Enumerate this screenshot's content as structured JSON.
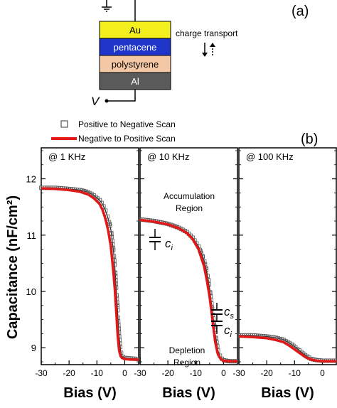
{
  "device": {
    "panel_label": "(a)",
    "layers": [
      {
        "label": "Au",
        "color": "#f2ef1c",
        "text_color": "#000000"
      },
      {
        "label": "pentacene",
        "color": "#1f35c9",
        "text_color": "#ffffff"
      },
      {
        "label": "polystyrene",
        "color": "#f4c8a4",
        "text_color": "#000000"
      },
      {
        "label": "Al",
        "color": "#5a5a5a",
        "text_color": "#ffffff"
      }
    ],
    "transport_label": "charge transport",
    "voltage_label": "V"
  },
  "legend": {
    "items": [
      {
        "label": "Positive to Negative Scan",
        "style": "open-square"
      },
      {
        "label": "Negative to Positive Scan",
        "style": "red-line"
      }
    ]
  },
  "annotations": {
    "panel_b": "(b)",
    "accumulation_line1": "Accumulation",
    "accumulation_line2": "Region",
    "depletion_line1": "Depletion",
    "depletion_line2": "Region",
    "ci_label": "c",
    "ci_sub": "i",
    "cs_label": "c",
    "cs_sub": "s"
  },
  "colors": {
    "line": "#e01818",
    "marker": "#555555",
    "axis": "#000000"
  },
  "chart_data": {
    "type": "line",
    "ylabel": "Capacitance (nF/cm²)",
    "ylim": [
      8.7,
      12.55
    ],
    "yticks": [
      9,
      10,
      11,
      12
    ],
    "xlim": [
      -30,
      5
    ],
    "xticks": [
      -30,
      -20,
      -10,
      0
    ],
    "panels": [
      {
        "title": "@ 1 KHz",
        "xlabel": "Bias (V)",
        "series": [
          {
            "name": "Positive to Negative Scan",
            "x": [
              -30,
              -25,
              -20,
              -16,
              -13,
              -11,
              -9,
              -8,
              -7,
              -6,
              -5,
              -4,
              -3.5,
              -3,
              -2.5,
              -2,
              -1.5,
              -1,
              0,
              2,
              5
            ],
            "y": [
              11.84,
              11.84,
              11.82,
              11.8,
              11.76,
              11.7,
              11.62,
              11.55,
              11.45,
              11.3,
              11.1,
              10.7,
              10.4,
              10.0,
              9.6,
              9.2,
              8.95,
              8.85,
              8.82,
              8.81,
              8.8
            ]
          },
          {
            "name": "Negative to Positive Scan",
            "x": [
              -30,
              -25,
              -20,
              -16,
              -13,
              -11,
              -9,
              -8,
              -7,
              -6,
              -5,
              -4,
              -3.5,
              -3,
              -2.5,
              -2,
              -1.5,
              -1,
              0,
              2,
              5
            ],
            "y": [
              11.83,
              11.82,
              11.8,
              11.77,
              11.72,
              11.65,
              11.55,
              11.45,
              11.3,
              11.1,
              10.8,
              10.3,
              10.0,
              9.6,
              9.2,
              8.95,
              8.85,
              8.82,
              8.8,
              8.79,
              8.79
            ]
          }
        ]
      },
      {
        "title": "@ 10 KHz",
        "xlabel": "Bias (V)",
        "series": [
          {
            "name": "Positive to Negative Scan",
            "x": [
              -30,
              -25,
              -20,
              -16,
              -13,
              -11,
              -9,
              -7,
              -6,
              -5,
              -4,
              -3,
              -2,
              -1,
              0,
              2,
              5
            ],
            "y": [
              11.28,
              11.25,
              11.2,
              11.13,
              11.05,
              10.95,
              10.8,
              10.55,
              10.35,
              10.05,
              9.65,
              9.25,
              8.95,
              8.82,
              8.78,
              8.76,
              8.76
            ]
          },
          {
            "name": "Negative to Positive Scan",
            "x": [
              -30,
              -25,
              -20,
              -16,
              -13,
              -11,
              -9,
              -7,
              -6,
              -5,
              -4,
              -3,
              -2,
              -1,
              0,
              2,
              5
            ],
            "y": [
              11.27,
              11.24,
              11.19,
              11.12,
              11.03,
              10.92,
              10.75,
              10.45,
              10.2,
              9.9,
              9.5,
              9.1,
              8.88,
              8.8,
              8.77,
              8.76,
              8.76
            ]
          }
        ]
      },
      {
        "title": "@ 100 KHz",
        "xlabel": "Bias (V)",
        "series": [
          {
            "name": "Positive to Negative Scan",
            "x": [
              -30,
              -25,
              -20,
              -17,
              -14,
              -12,
              -10,
              -8,
              -6,
              -4,
              -2,
              0,
              3,
              5
            ],
            "y": [
              9.22,
              9.22,
              9.2,
              9.18,
              9.14,
              9.09,
              9.02,
              8.94,
              8.86,
              8.8,
              8.78,
              8.77,
              8.77,
              8.77
            ]
          },
          {
            "name": "Negative to Positive Scan",
            "x": [
              -30,
              -25,
              -20,
              -17,
              -14,
              -12,
              -10,
              -8,
              -6,
              -4,
              -2,
              0,
              3,
              5
            ],
            "y": [
              9.2,
              9.19,
              9.17,
              9.14,
              9.1,
              9.04,
              8.97,
              8.9,
              8.83,
              8.79,
              8.77,
              8.76,
              8.76,
              8.76
            ]
          }
        ]
      }
    ]
  }
}
